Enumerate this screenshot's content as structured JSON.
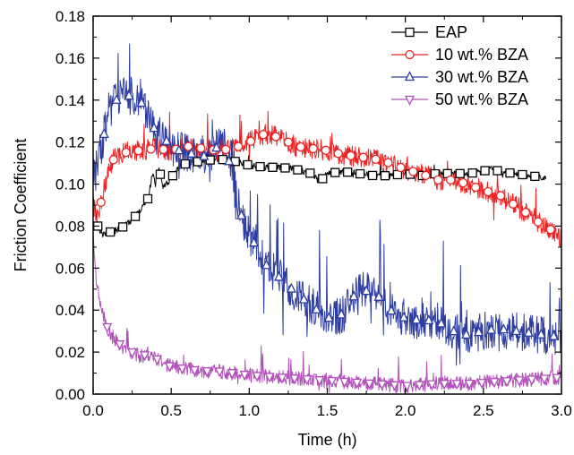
{
  "chart_data": {
    "type": "line",
    "title": "",
    "xlabel": "Time (h)",
    "ylabel": "Friction Coefficient",
    "xlim": [
      0,
      3.0
    ],
    "ylim": [
      0,
      0.18
    ],
    "xticks": [
      0.0,
      0.5,
      1.0,
      1.5,
      2.0,
      2.5,
      3.0
    ],
    "xtick_labels": [
      "0.0",
      "0.5",
      "1.0",
      "1.5",
      "2.0",
      "2.5",
      "3.0"
    ],
    "yticks": [
      0,
      0.02,
      0.04,
      0.06,
      0.08,
      0.1,
      0.12,
      0.14,
      0.16,
      0.18
    ],
    "ytick_labels": [
      "0.00",
      "0.02",
      "0.04",
      "0.06",
      "0.08",
      "0.10",
      "0.12",
      "0.14",
      "0.16",
      "0.18"
    ],
    "grid": false,
    "legend_position": "top-right",
    "series": [
      {
        "name": "EAP",
        "color": "#000000",
        "marker": "square",
        "noise": 0.0015,
        "x": [
          0,
          0.03,
          0.06,
          0.1,
          0.15,
          0.2,
          0.25,
          0.3,
          0.35,
          0.38,
          0.4,
          0.42,
          0.45,
          0.5,
          0.55,
          0.6,
          0.7,
          0.8,
          0.9,
          1.0,
          1.1,
          1.2,
          1.3,
          1.4,
          1.45,
          1.5,
          1.6,
          1.7,
          1.8,
          1.9,
          2.0,
          2.1,
          2.2,
          2.3,
          2.4,
          2.5,
          2.55,
          2.6,
          2.7,
          2.8,
          2.9
        ],
        "values": [
          0.095,
          0.08,
          0.076,
          0.077,
          0.078,
          0.08,
          0.083,
          0.087,
          0.093,
          0.105,
          0.1,
          0.108,
          0.098,
          0.103,
          0.108,
          0.11,
          0.111,
          0.112,
          0.111,
          0.109,
          0.108,
          0.108,
          0.107,
          0.105,
          0.101,
          0.105,
          0.106,
          0.105,
          0.104,
          0.104,
          0.105,
          0.104,
          0.105,
          0.105,
          0.105,
          0.106,
          0.108,
          0.106,
          0.105,
          0.104,
          0.103
        ]
      },
      {
        "name": "10 wt.% BZA",
        "color": "#ee2222",
        "marker": "circle",
        "noise": 0.005,
        "x": [
          0,
          0.03,
          0.06,
          0.1,
          0.15,
          0.2,
          0.3,
          0.4,
          0.5,
          0.6,
          0.7,
          0.8,
          0.9,
          1.0,
          1.1,
          1.2,
          1.3,
          1.4,
          1.5,
          1.6,
          1.7,
          1.8,
          1.9,
          2.0,
          2.1,
          2.2,
          2.3,
          2.4,
          2.5,
          2.6,
          2.7,
          2.8,
          2.9,
          2.95,
          3.0
        ],
        "values": [
          0.09,
          0.084,
          0.095,
          0.108,
          0.114,
          0.115,
          0.116,
          0.117,
          0.116,
          0.118,
          0.117,
          0.116,
          0.117,
          0.12,
          0.124,
          0.122,
          0.118,
          0.117,
          0.116,
          0.114,
          0.113,
          0.112,
          0.11,
          0.107,
          0.105,
          0.102,
          0.102,
          0.1,
          0.097,
          0.095,
          0.09,
          0.085,
          0.079,
          0.078,
          0.074
        ]
      },
      {
        "name": "30 wt.% BZA",
        "color": "#2e3da0",
        "marker": "triangle-up",
        "noise": 0.009,
        "x": [
          0,
          0.03,
          0.06,
          0.1,
          0.15,
          0.2,
          0.25,
          0.3,
          0.35,
          0.4,
          0.45,
          0.5,
          0.55,
          0.6,
          0.65,
          0.7,
          0.75,
          0.8,
          0.85,
          0.9,
          0.95,
          1.0,
          1.05,
          1.1,
          1.2,
          1.3,
          1.4,
          1.5,
          1.6,
          1.7,
          1.8,
          1.85,
          1.9,
          2.0,
          2.1,
          2.2,
          2.3,
          2.4,
          2.5,
          2.6,
          2.7,
          2.8,
          2.9,
          3.0
        ],
        "values": [
          0.105,
          0.112,
          0.12,
          0.135,
          0.14,
          0.142,
          0.142,
          0.14,
          0.133,
          0.125,
          0.122,
          0.118,
          0.116,
          0.115,
          0.114,
          0.113,
          0.114,
          0.118,
          0.118,
          0.1,
          0.085,
          0.075,
          0.07,
          0.062,
          0.055,
          0.048,
          0.042,
          0.036,
          0.038,
          0.05,
          0.048,
          0.045,
          0.04,
          0.036,
          0.035,
          0.035,
          0.03,
          0.028,
          0.03,
          0.031,
          0.03,
          0.029,
          0.028,
          0.027
        ]
      },
      {
        "name": "50 wt.% BZA",
        "color": "#b050b8",
        "marker": "triangle-down",
        "noise": 0.0035,
        "x": [
          0,
          0.02,
          0.05,
          0.1,
          0.15,
          0.2,
          0.25,
          0.3,
          0.35,
          0.4,
          0.45,
          0.5,
          0.6,
          0.7,
          0.8,
          0.9,
          1.0,
          1.2,
          1.4,
          1.6,
          1.8,
          2.0,
          2.2,
          2.4,
          2.6,
          2.8,
          3.0
        ],
        "values": [
          0.075,
          0.055,
          0.04,
          0.03,
          0.025,
          0.022,
          0.02,
          0.018,
          0.019,
          0.017,
          0.015,
          0.013,
          0.012,
          0.011,
          0.011,
          0.01,
          0.009,
          0.008,
          0.007,
          0.006,
          0.005,
          0.004,
          0.005,
          0.005,
          0.006,
          0.007,
          0.008
        ]
      }
    ]
  }
}
